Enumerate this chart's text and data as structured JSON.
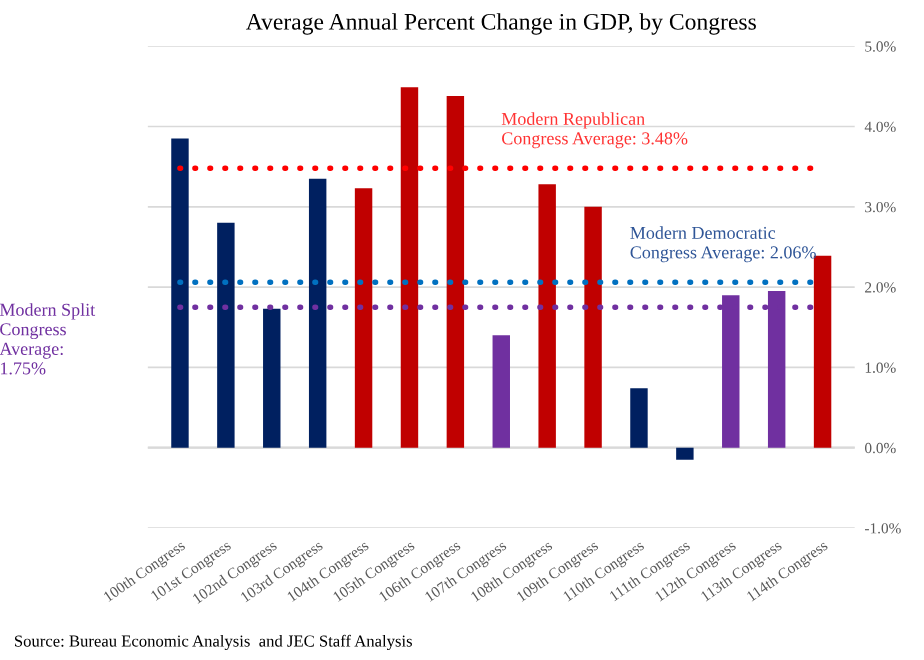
{
  "chart_data": {
    "type": "bar",
    "title": "Average Annual Percent Change in GDP, by Congress",
    "categories": [
      "100th Congress",
      "101st Congress",
      "102nd Congress",
      "103rd Congress",
      "104th Congress",
      "105th Congress",
      "106th Congress",
      "107th Congress",
      "108th Congress",
      "109th Congress",
      "110th Congress",
      "111th Congress",
      "112th Congress",
      "113th Congress",
      "114th Congress"
    ],
    "values": [
      3.85,
      2.8,
      1.73,
      3.35,
      3.23,
      4.49,
      4.38,
      1.4,
      3.28,
      3.0,
      0.74,
      -0.15,
      1.9,
      1.95,
      2.39
    ],
    "colors": [
      "#002060",
      "#002060",
      "#002060",
      "#002060",
      "#c00000",
      "#c00000",
      "#c00000",
      "#7030a0",
      "#c00000",
      "#c00000",
      "#002060",
      "#002060",
      "#7030a0",
      "#7030a0",
      "#c00000"
    ],
    "ylim": [
      -1,
      5
    ],
    "yticks": [
      {
        "value": -1,
        "label": "-1.0%"
      },
      {
        "value": 0,
        "label": "0.0%"
      },
      {
        "value": 1,
        "label": "1.0%"
      },
      {
        "value": 2,
        "label": "2.0%"
      },
      {
        "value": 3,
        "label": "3.0%"
      },
      {
        "value": 4,
        "label": "4.0%"
      },
      {
        "value": 5,
        "label": "5.0%"
      }
    ],
    "grid": "y",
    "ref_lines": [
      {
        "axis": "y",
        "value": 3.48,
        "label": "Modern Republican\nCongress Average: 3.48%",
        "color": "#ff0000",
        "line_style": "dotted"
      },
      {
        "axis": "y",
        "value": 2.06,
        "label": "Modern Democratic\nCongress Average: 2.06%",
        "color": "#0070c0",
        "line_style": "dotted"
      },
      {
        "axis": "y",
        "value": 1.75,
        "label": "Modern Split\nCongress\nAverage:\n1.75%",
        "color": "#7030a0",
        "line_style": "dotted"
      }
    ],
    "annotations": [
      "Source: Bureau Economic Analysis  and JEC Staff Analysis"
    ]
  }
}
